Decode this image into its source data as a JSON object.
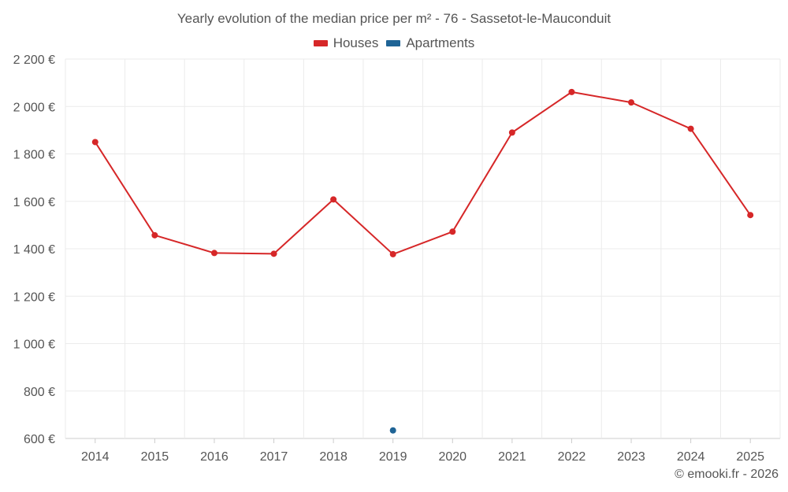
{
  "chart_data": {
    "type": "line",
    "title": "Yearly evolution of the median price per m² - 76 - Sassetot-le-Mauconduit",
    "categories": [
      "2014",
      "2015",
      "2016",
      "2017",
      "2018",
      "2019",
      "2020",
      "2021",
      "2022",
      "2023",
      "2024",
      "2025"
    ],
    "series": [
      {
        "name": "Houses",
        "color": "#d62728",
        "values": [
          1850,
          1457,
          1382,
          1379,
          1608,
          1377,
          1472,
          1890,
          2061,
          2017,
          1906,
          1542
        ]
      },
      {
        "name": "Apartments",
        "color": "#1f6496",
        "values": [
          null,
          null,
          null,
          null,
          null,
          634,
          null,
          null,
          null,
          null,
          null,
          null
        ]
      }
    ],
    "ylim": [
      600,
      2200
    ],
    "yticks": [
      600,
      800,
      1000,
      1200,
      1400,
      1600,
      1800,
      2000,
      2200
    ],
    "ytick_labels": [
      "600 €",
      "800 €",
      "1 000 €",
      "1 200 €",
      "1 400 €",
      "1 600 €",
      "1 800 €",
      "2 000 €",
      "2 200 €"
    ],
    "xlabel": "",
    "ylabel": "",
    "grid": true,
    "legend_position": "top-center"
  },
  "legend": {
    "houses_label": "Houses",
    "apartments_label": "Apartments",
    "houses_color": "#d62728",
    "apartments_color": "#1f6496"
  },
  "credit": "© emooki.fr - 2026"
}
